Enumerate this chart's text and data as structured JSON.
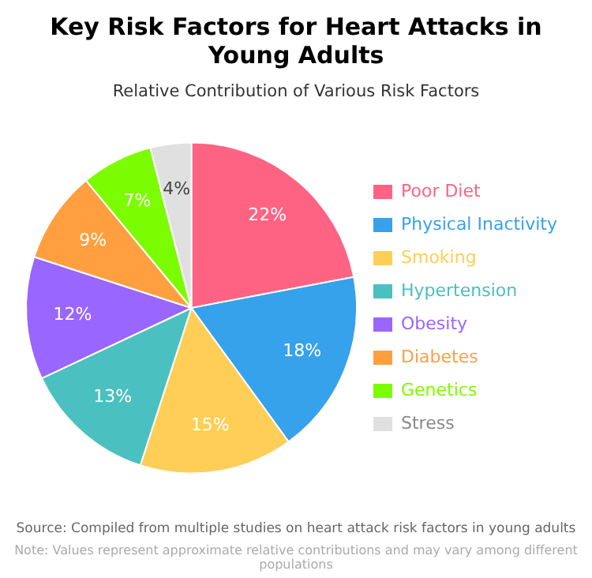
{
  "chart_data": {
    "type": "pie",
    "title": "Key Risk Factors for Heart Attacks in Young Adults",
    "subtitle": "Relative Contribution of Various Risk Factors",
    "categories": [
      "Poor Diet",
      "Physical Inactivity",
      "Smoking",
      "Hypertension",
      "Obesity",
      "Diabetes",
      "Genetics",
      "Stress"
    ],
    "values": [
      22,
      18,
      15,
      13,
      12,
      9,
      7,
      4
    ],
    "value_labels": [
      "22%",
      "18%",
      "15%",
      "13%",
      "12%",
      "9%",
      "7%",
      "4%"
    ],
    "colors": [
      "#ff6384",
      "#36a2eb",
      "#ffce56",
      "#4bc0c0",
      "#9966ff",
      "#ff9f40",
      "#7cfc00",
      "#e0e0e0"
    ],
    "legend": "right",
    "annotations": [
      "Source: Compiled from multiple studies on heart attack risk factors in young adults",
      "Note: Values represent approximate relative contributions and may vary among different populations"
    ]
  }
}
